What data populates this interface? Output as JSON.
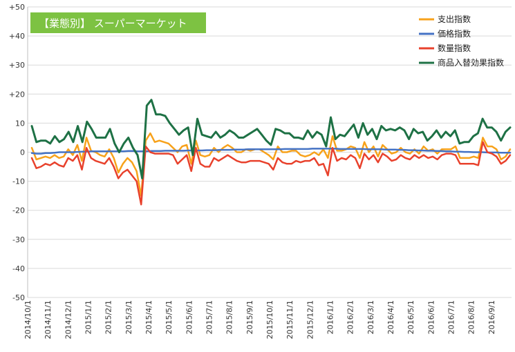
{
  "chart_data": {
    "type": "line",
    "title": "【業態別】 スーパーマーケット",
    "title_box_color": "#7dc242",
    "ylim": [
      -50,
      50
    ],
    "y_ticks": [
      50,
      40,
      30,
      20,
      10,
      0,
      -10,
      -20,
      -30,
      -40,
      -50
    ],
    "y_tick_labels": [
      "+50",
      "+40",
      "+30",
      "+20",
      "10",
      "0",
      "-10",
      "-20",
      "-30",
      "-40",
      "-50"
    ],
    "x_tick_labels": [
      "2014/10/1",
      "2014/11/1",
      "2014/12/1",
      "2015/1/1",
      "2015/2/1",
      "2015/3/1",
      "2015/4/1",
      "2015/5/1",
      "2015/6/1",
      "2015/7/1",
      "2015/8/1",
      "2015/9/1",
      "2015/10/1",
      "2015/11/1",
      "2015/12/1",
      "2016/1/1",
      "2016/2/1",
      "2016/3/1",
      "2016/4/1",
      "2016/5/1",
      "2016/6/1",
      "2016/7/1",
      "2016/8/1",
      "2016/9/1"
    ],
    "grid": true,
    "legend_position": "top-right",
    "series": [
      {
        "name": "支出指数",
        "color": "#f7a21b",
        "values": [
          1.5,
          -2.5,
          -2,
          -1.5,
          -2,
          -1,
          -2,
          -1.5,
          1,
          -1,
          2.5,
          -3,
          5,
          0.5,
          0,
          -1,
          -1.5,
          1,
          -2,
          -7,
          -4,
          -2,
          -3.5,
          -6.5,
          -15,
          4,
          6.5,
          3.5,
          4,
          3.5,
          3,
          1.5,
          0,
          2,
          2.5,
          -4,
          4,
          -1,
          -1.5,
          -1,
          1.5,
          0,
          1.5,
          2.5,
          1.5,
          0,
          0,
          1,
          0.5,
          1,
          1,
          0,
          -1,
          -2.5,
          2,
          0,
          0,
          0.5,
          0.5,
          -1,
          -1.5,
          -1,
          0,
          -1,
          1,
          -2,
          5.5,
          0.5,
          0.5,
          1,
          2,
          1.5,
          -2,
          3.5,
          0,
          2,
          -1.5,
          2.5,
          1,
          -0.5,
          0,
          1.5,
          0,
          -0.5,
          1,
          -0.5,
          2,
          0.5,
          1,
          -0.5,
          1,
          1,
          1,
          2,
          -2,
          -2,
          -2,
          -1.5,
          -2,
          5,
          2,
          2,
          1,
          -2.5,
          -1.5,
          1
        ],
        "color_line_width": 2.5
      },
      {
        "name": "価格指数",
        "color": "#4472c4",
        "values": [
          -0.3,
          -0.5,
          -0.5,
          -0.3,
          -0.3,
          -0.2,
          0,
          0,
          0,
          0,
          0.1,
          0.2,
          0.2,
          0.3,
          0.3,
          0.3,
          0.3,
          0.3,
          0.3,
          0.3,
          0.3,
          0.4,
          0.4,
          0.3,
          0.3,
          0.3,
          0.4,
          0.4,
          0.4,
          0.5,
          0.5,
          0.5,
          0.5,
          0.5,
          0.6,
          0.6,
          0.6,
          0.6,
          0.7,
          0.7,
          0.7,
          0.8,
          0.8,
          0.8,
          0.9,
          0.9,
          0.9,
          1,
          1,
          1,
          1,
          1,
          1,
          1,
          1,
          1.1,
          1.1,
          1.1,
          1.1,
          1.1,
          1.1,
          1.2,
          1.2,
          1.2,
          1.2,
          1.2,
          1.2,
          1.1,
          1.1,
          1.1,
          1.1,
          1.1,
          1.1,
          1,
          1,
          1,
          1,
          0.9,
          0.9,
          0.9,
          0.8,
          0.8,
          0.7,
          0.7,
          0.6,
          0.6,
          0.5,
          0.5,
          0.4,
          0.4,
          0.3,
          0.3,
          0.2,
          0.2,
          0.1,
          0.1,
          0,
          0,
          0,
          -0.1,
          -0.1,
          -0.1,
          -0.2,
          -0.2,
          -0.2
        ],
        "color_line_width": 2.5
      },
      {
        "name": "数量指数",
        "color": "#e8412c",
        "values": [
          -2,
          -5.5,
          -5,
          -4,
          -4.5,
          -3.5,
          -4.5,
          -5,
          -2,
          -3,
          -1,
          -6,
          1.5,
          -2,
          -3,
          -3.5,
          -4,
          -2,
          -5,
          -9,
          -7,
          -6,
          -8,
          -10,
          -18,
          2,
          0,
          -0.5,
          -0.5,
          -0.5,
          -0.5,
          -1,
          -4,
          -2.5,
          -1,
          -6.5,
          1.5,
          -4,
          -5,
          -5,
          -2,
          -3,
          -2,
          -1,
          -2,
          -3,
          -3.5,
          -3.5,
          -3,
          -3,
          -3,
          -3.5,
          -4,
          -6,
          -2,
          -3.5,
          -4,
          -4,
          -3,
          -3.5,
          -3,
          -3,
          -2,
          -4.5,
          -4,
          -8,
          1.5,
          -3,
          -2,
          -2.5,
          -1,
          -2,
          -5.5,
          -0.5,
          -2.5,
          -1,
          -3.5,
          -0.5,
          -1.5,
          -3,
          -2.5,
          -1,
          -2,
          -2.5,
          -1,
          -2,
          -1,
          -2,
          -1.5,
          -2.5,
          -1,
          -0.5,
          -0.5,
          -1,
          -4,
          -4,
          -4,
          -4,
          -4.5,
          3.5,
          0,
          -0.5,
          -1.5,
          -4,
          -3,
          -1
        ],
        "color_line_width": 2.5
      },
      {
        "name": "商品入替効果指数",
        "color": "#1e7145",
        "values": [
          9,
          3.5,
          4,
          4,
          3,
          5.5,
          3.5,
          4.5,
          7,
          3.5,
          9,
          3.5,
          10.5,
          8,
          5,
          5,
          5,
          8,
          3,
          0,
          3,
          5,
          1.5,
          -1,
          -9,
          16,
          18,
          13,
          13,
          12.5,
          10,
          8,
          6,
          7.5,
          8.5,
          -1,
          11.5,
          6,
          5.5,
          5,
          7,
          5,
          6,
          7.5,
          6.5,
          5,
          5,
          6,
          7,
          8,
          6,
          4,
          2.5,
          8,
          7.5,
          6.5,
          6.5,
          5,
          5,
          4.5,
          7.5,
          5,
          7,
          6,
          2,
          12,
          4.5,
          6,
          5.5,
          7.5,
          9.5,
          5,
          10,
          6,
          8,
          4.5,
          9,
          7.5,
          8,
          7.5,
          8.5,
          7.5,
          4.5,
          8,
          6.5,
          7,
          4,
          5.5,
          7.5,
          5,
          7,
          5.5,
          7.5,
          3,
          3.5,
          3.5,
          5.5,
          6.5,
          11.5,
          8.5,
          8.5,
          7,
          4,
          7,
          8.5
        ],
        "color_line_width": 3
      }
    ]
  }
}
